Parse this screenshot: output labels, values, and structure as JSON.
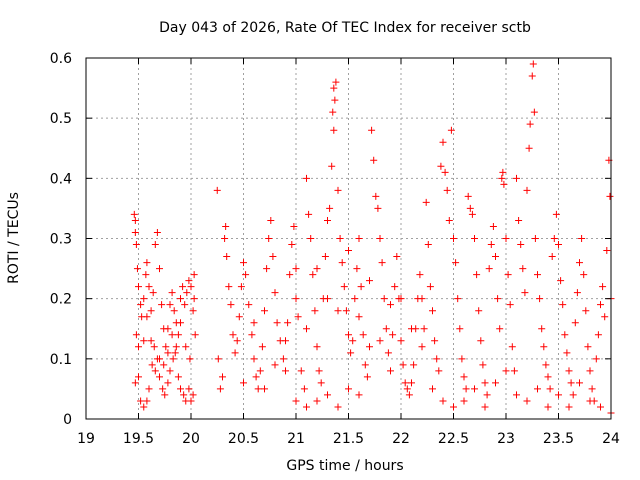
{
  "chart_data": {
    "type": "scatter",
    "title": "Day 043 of 2026, Rate Of TEC Index for receiver sctb",
    "xlabel": "GPS time / hours",
    "ylabel": "ROTI / TECUs",
    "xlim": [
      19,
      24
    ],
    "ylim": [
      0,
      0.6
    ],
    "xticks": [
      19,
      19.5,
      20,
      20.5,
      21,
      21.5,
      22,
      22.5,
      23,
      23.5,
      24
    ],
    "xtick_labels": [
      "19",
      "19.5",
      "20",
      "20.5",
      "21",
      "21.5",
      "22",
      "22.5",
      "23",
      "23.5",
      "24"
    ],
    "yticks": [
      0,
      0.1,
      0.2,
      0.3,
      0.4,
      0.5,
      0.6
    ],
    "ytick_labels": [
      "0",
      "0.1",
      "0.2",
      "0.3",
      "0.4",
      "0.5",
      "0.6"
    ],
    "grid": true,
    "marker": "+",
    "color": "#ff0000",
    "series": [
      {
        "name": "ROTI",
        "points": [
          [
            19.46,
            0.34
          ],
          [
            19.47,
            0.33
          ],
          [
            19.47,
            0.31
          ],
          [
            19.48,
            0.29
          ],
          [
            19.49,
            0.25
          ],
          [
            19.5,
            0.22
          ],
          [
            19.52,
            0.19
          ],
          [
            19.53,
            0.17
          ],
          [
            19.55,
            0.2
          ],
          [
            19.57,
            0.24
          ],
          [
            19.58,
            0.26
          ],
          [
            19.6,
            0.22
          ],
          [
            19.62,
            0.18
          ],
          [
            19.64,
            0.21
          ],
          [
            19.66,
            0.29
          ],
          [
            19.68,
            0.31
          ],
          [
            19.7,
            0.25
          ],
          [
            19.72,
            0.19
          ],
          [
            19.74,
            0.15
          ],
          [
            19.76,
            0.12
          ],
          [
            19.78,
            0.15
          ],
          [
            19.8,
            0.19
          ],
          [
            19.82,
            0.21
          ],
          [
            19.84,
            0.18
          ],
          [
            19.86,
            0.16
          ],
          [
            19.88,
            0.14
          ],
          [
            19.9,
            0.2
          ],
          [
            19.92,
            0.22
          ],
          [
            19.94,
            0.19
          ],
          [
            19.96,
            0.21
          ],
          [
            19.98,
            0.23
          ],
          [
            20.0,
            0.22
          ],
          [
            20.03,
            0.24
          ],
          [
            19.47,
            0.06
          ],
          [
            19.5,
            0.07
          ],
          [
            19.52,
            0.03
          ],
          [
            19.55,
            0.02
          ],
          [
            19.58,
            0.03
          ],
          [
            19.6,
            0.05
          ],
          [
            19.63,
            0.09
          ],
          [
            19.65,
            0.12
          ],
          [
            19.68,
            0.1
          ],
          [
            19.7,
            0.07
          ],
          [
            19.73,
            0.05
          ],
          [
            19.75,
            0.04
          ],
          [
            19.78,
            0.06
          ],
          [
            19.8,
            0.08
          ],
          [
            19.83,
            0.1
          ],
          [
            19.85,
            0.11
          ],
          [
            19.88,
            0.07
          ],
          [
            19.9,
            0.05
          ],
          [
            19.93,
            0.04
          ],
          [
            19.95,
            0.03
          ],
          [
            19.98,
            0.05
          ],
          [
            20.0,
            0.03
          ],
          [
            20.02,
            0.04
          ],
          [
            20.04,
            0.14
          ],
          [
            19.48,
            0.14
          ],
          [
            19.5,
            0.12
          ],
          [
            19.55,
            0.13
          ],
          [
            19.58,
            0.17
          ],
          [
            19.62,
            0.13
          ],
          [
            19.66,
            0.08
          ],
          [
            19.7,
            0.1
          ],
          [
            19.74,
            0.09
          ],
          [
            19.78,
            0.11
          ],
          [
            19.82,
            0.14
          ],
          [
            19.86,
            0.12
          ],
          [
            19.9,
            0.16
          ],
          [
            19.95,
            0.12
          ],
          [
            19.99,
            0.1
          ],
          [
            20.02,
            0.18
          ],
          [
            20.03,
            0.2
          ],
          [
            20.25,
            0.38
          ],
          [
            20.26,
            0.1
          ],
          [
            20.28,
            0.05
          ],
          [
            20.3,
            0.07
          ],
          [
            20.32,
            0.3
          ],
          [
            20.33,
            0.32
          ],
          [
            20.34,
            0.27
          ],
          [
            20.36,
            0.22
          ],
          [
            20.38,
            0.19
          ],
          [
            20.4,
            0.14
          ],
          [
            20.42,
            0.11
          ],
          [
            20.44,
            0.13
          ],
          [
            20.46,
            0.17
          ],
          [
            20.48,
            0.22
          ],
          [
            20.5,
            0.26
          ],
          [
            20.52,
            0.24
          ],
          [
            20.55,
            0.19
          ],
          [
            20.58,
            0.14
          ],
          [
            20.6,
            0.1
          ],
          [
            20.62,
            0.07
          ],
          [
            20.64,
            0.05
          ],
          [
            20.66,
            0.08
          ],
          [
            20.68,
            0.12
          ],
          [
            20.7,
            0.18
          ],
          [
            20.72,
            0.25
          ],
          [
            20.74,
            0.3
          ],
          [
            20.76,
            0.33
          ],
          [
            20.78,
            0.27
          ],
          [
            20.8,
            0.21
          ],
          [
            20.82,
            0.16
          ],
          [
            20.85,
            0.13
          ],
          [
            20.88,
            0.1
          ],
          [
            20.9,
            0.08
          ],
          [
            20.92,
            0.16
          ],
          [
            20.94,
            0.24
          ],
          [
            20.96,
            0.29
          ],
          [
            20.98,
            0.32
          ],
          [
            21.0,
            0.25
          ],
          [
            21.02,
            0.17
          ],
          [
            21.05,
            0.08
          ],
          [
            21.08,
            0.05
          ],
          [
            21.1,
            0.4
          ],
          [
            21.12,
            0.34
          ],
          [
            21.14,
            0.3
          ],
          [
            21.16,
            0.24
          ],
          [
            21.18,
            0.18
          ],
          [
            21.2,
            0.12
          ],
          [
            21.22,
            0.08
          ],
          [
            21.24,
            0.06
          ],
          [
            21.26,
            0.2
          ],
          [
            21.28,
            0.27
          ],
          [
            21.3,
            0.33
          ],
          [
            21.32,
            0.35
          ],
          [
            21.34,
            0.42
          ],
          [
            21.36,
            0.48
          ],
          [
            21.37,
            0.53
          ],
          [
            21.38,
            0.56
          ],
          [
            21.36,
            0.55
          ],
          [
            21.35,
            0.51
          ],
          [
            21.4,
            0.38
          ],
          [
            21.42,
            0.3
          ],
          [
            21.44,
            0.26
          ],
          [
            21.46,
            0.22
          ],
          [
            21.48,
            0.18
          ],
          [
            21.5,
            0.14
          ],
          [
            21.52,
            0.11
          ],
          [
            21.54,
            0.13
          ],
          [
            21.56,
            0.2
          ],
          [
            21.58,
            0.25
          ],
          [
            21.6,
            0.3
          ],
          [
            21.62,
            0.22
          ],
          [
            21.64,
            0.14
          ],
          [
            21.66,
            0.09
          ],
          [
            21.68,
            0.07
          ],
          [
            21.7,
            0.12
          ],
          [
            21.72,
            0.48
          ],
          [
            21.74,
            0.43
          ],
          [
            21.76,
            0.37
          ],
          [
            21.78,
            0.35
          ],
          [
            21.8,
            0.3
          ],
          [
            21.82,
            0.26
          ],
          [
            21.84,
            0.2
          ],
          [
            21.86,
            0.15
          ],
          [
            21.88,
            0.11
          ],
          [
            21.9,
            0.08
          ],
          [
            21.92,
            0.14
          ],
          [
            21.94,
            0.22
          ],
          [
            21.96,
            0.27
          ],
          [
            21.98,
            0.2
          ],
          [
            22.0,
            0.13
          ],
          [
            22.02,
            0.09
          ],
          [
            22.04,
            0.06
          ],
          [
            22.06,
            0.05
          ],
          [
            22.08,
            0.04
          ],
          [
            22.1,
            0.06
          ],
          [
            22.12,
            0.09
          ],
          [
            22.14,
            0.15
          ],
          [
            22.16,
            0.2
          ],
          [
            22.18,
            0.24
          ],
          [
            22.2,
            0.2
          ],
          [
            22.22,
            0.15
          ],
          [
            22.24,
            0.36
          ],
          [
            22.26,
            0.29
          ],
          [
            22.28,
            0.22
          ],
          [
            22.3,
            0.18
          ],
          [
            22.32,
            0.13
          ],
          [
            22.34,
            0.1
          ],
          [
            22.36,
            0.08
          ],
          [
            22.38,
            0.42
          ],
          [
            22.4,
            0.46
          ],
          [
            22.42,
            0.41
          ],
          [
            22.44,
            0.38
          ],
          [
            22.46,
            0.33
          ],
          [
            22.48,
            0.48
          ],
          [
            22.5,
            0.3
          ],
          [
            22.52,
            0.26
          ],
          [
            22.54,
            0.2
          ],
          [
            22.56,
            0.15
          ],
          [
            22.58,
            0.1
          ],
          [
            22.6,
            0.07
          ],
          [
            22.62,
            0.05
          ],
          [
            22.64,
            0.37
          ],
          [
            22.66,
            0.35
          ],
          [
            22.68,
            0.34
          ],
          [
            22.7,
            0.3
          ],
          [
            22.72,
            0.24
          ],
          [
            22.74,
            0.18
          ],
          [
            22.76,
            0.13
          ],
          [
            22.78,
            0.09
          ],
          [
            22.8,
            0.06
          ],
          [
            22.82,
            0.04
          ],
          [
            22.84,
            0.25
          ],
          [
            22.86,
            0.29
          ],
          [
            22.88,
            0.32
          ],
          [
            22.9,
            0.27
          ],
          [
            22.92,
            0.2
          ],
          [
            22.94,
            0.15
          ],
          [
            22.96,
            0.4
          ],
          [
            22.97,
            0.41
          ],
          [
            22.98,
            0.39
          ],
          [
            23.0,
            0.3
          ],
          [
            23.02,
            0.24
          ],
          [
            23.04,
            0.19
          ],
          [
            23.06,
            0.12
          ],
          [
            23.08,
            0.08
          ],
          [
            23.1,
            0.4
          ],
          [
            23.12,
            0.33
          ],
          [
            23.14,
            0.29
          ],
          [
            23.16,
            0.25
          ],
          [
            23.18,
            0.21
          ],
          [
            23.2,
            0.38
          ],
          [
            23.22,
            0.45
          ],
          [
            23.23,
            0.49
          ],
          [
            23.25,
            0.57
          ],
          [
            23.26,
            0.59
          ],
          [
            23.27,
            0.51
          ],
          [
            23.28,
            0.3
          ],
          [
            23.3,
            0.24
          ],
          [
            23.32,
            0.2
          ],
          [
            23.34,
            0.15
          ],
          [
            23.36,
            0.12
          ],
          [
            23.38,
            0.09
          ],
          [
            23.4,
            0.07
          ],
          [
            23.42,
            0.05
          ],
          [
            23.44,
            0.27
          ],
          [
            23.46,
            0.3
          ],
          [
            23.48,
            0.34
          ],
          [
            23.5,
            0.29
          ],
          [
            23.52,
            0.23
          ],
          [
            23.54,
            0.19
          ],
          [
            23.56,
            0.14
          ],
          [
            23.58,
            0.11
          ],
          [
            23.6,
            0.08
          ],
          [
            23.62,
            0.06
          ],
          [
            23.64,
            0.04
          ],
          [
            23.66,
            0.16
          ],
          [
            23.68,
            0.21
          ],
          [
            23.7,
            0.26
          ],
          [
            23.72,
            0.3
          ],
          [
            23.74,
            0.24
          ],
          [
            23.76,
            0.18
          ],
          [
            23.78,
            0.12
          ],
          [
            23.8,
            0.08
          ],
          [
            23.82,
            0.05
          ],
          [
            23.84,
            0.03
          ],
          [
            23.86,
            0.1
          ],
          [
            23.88,
            0.14
          ],
          [
            23.9,
            0.19
          ],
          [
            23.92,
            0.22
          ],
          [
            23.94,
            0.17
          ],
          [
            23.96,
            0.28
          ],
          [
            23.98,
            0.43
          ],
          [
            23.99,
            0.37
          ],
          [
            24.0,
            0.2
          ],
          [
            22.0,
            0.2
          ],
          [
            22.1,
            0.15
          ],
          [
            22.2,
            0.12
          ],
          [
            22.3,
            0.05
          ],
          [
            22.4,
            0.03
          ],
          [
            22.5,
            0.02
          ],
          [
            22.6,
            0.03
          ],
          [
            22.7,
            0.05
          ],
          [
            22.8,
            0.02
          ],
          [
            22.9,
            0.06
          ],
          [
            23.0,
            0.08
          ],
          [
            23.1,
            0.04
          ],
          [
            23.2,
            0.03
          ],
          [
            23.3,
            0.05
          ],
          [
            23.4,
            0.02
          ],
          [
            23.5,
            0.04
          ],
          [
            23.6,
            0.02
          ],
          [
            23.7,
            0.06
          ],
          [
            23.8,
            0.03
          ],
          [
            23.9,
            0.02
          ],
          [
            24.0,
            0.01
          ],
          [
            21.0,
            0.2
          ],
          [
            21.1,
            0.15
          ],
          [
            21.2,
            0.25
          ],
          [
            21.3,
            0.2
          ],
          [
            21.4,
            0.18
          ],
          [
            21.5,
            0.28
          ],
          [
            21.6,
            0.17
          ],
          [
            21.7,
            0.23
          ],
          [
            21.8,
            0.13
          ],
          [
            21.9,
            0.19
          ],
          [
            20.5,
            0.06
          ],
          [
            20.6,
            0.16
          ],
          [
            20.7,
            0.05
          ],
          [
            20.8,
            0.09
          ],
          [
            20.9,
            0.13
          ],
          [
            21.0,
            0.03
          ],
          [
            21.1,
            0.02
          ],
          [
            21.2,
            0.03
          ],
          [
            21.3,
            0.04
          ],
          [
            21.4,
            0.02
          ],
          [
            21.5,
            0.05
          ],
          [
            21.6,
            0.04
          ]
        ]
      }
    ]
  }
}
